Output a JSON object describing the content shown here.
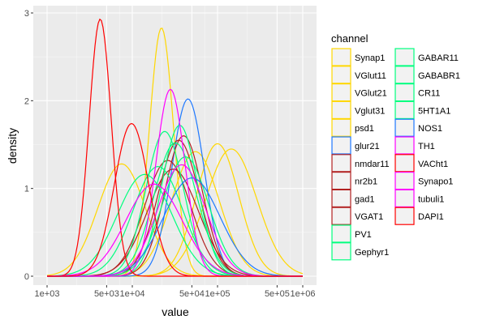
{
  "chart_data": {
    "type": "line",
    "title": "",
    "xlabel": "value",
    "ylabel": "density",
    "x_scale": "log10",
    "xlim": [
      1000,
      1000000
    ],
    "ylim": [
      0,
      3.0
    ],
    "grid": true,
    "legend_position": "right",
    "legend_title": "channel",
    "x_ticks": [
      {
        "value": 1000,
        "label": "1e+03"
      },
      {
        "value": 5000,
        "label": "5e+03"
      },
      {
        "value": 10000,
        "label": "1e+04"
      },
      {
        "value": 50000,
        "label": "5e+04"
      },
      {
        "value": 100000,
        "label": "1e+05"
      },
      {
        "value": 500000,
        "label": "5e+05"
      },
      {
        "value": 1000000,
        "label": "1e+06"
      }
    ],
    "y_ticks": [
      {
        "value": 0,
        "label": "0"
      },
      {
        "value": 1,
        "label": "1"
      },
      {
        "value": 2,
        "label": "2"
      },
      {
        "value": 3,
        "label": "3"
      }
    ],
    "series_shape": "approximate log-normal density curves; mode = x value of peak, peak = density at mode, sd = spread in log10 units",
    "series": [
      {
        "name": "Synap1",
        "color": "#FFD700",
        "mode": 22000,
        "peak": 2.83,
        "sd": 0.14
      },
      {
        "name": "VGlut11",
        "color": "#FFD700",
        "mode": 55000,
        "peak": 1.42,
        "sd": 0.28
      },
      {
        "name": "VGlut21",
        "color": "#FFD700",
        "mode": 145000,
        "peak": 1.45,
        "sd": 0.3
      },
      {
        "name": "Vglut31",
        "color": "#FFD700",
        "mode": 7500,
        "peak": 1.28,
        "sd": 0.28
      },
      {
        "name": "psd1",
        "color": "#FFD700",
        "mode": 100000,
        "peak": 1.51,
        "sd": 0.25
      },
      {
        "name": "glur21",
        "color": "#1E78FF",
        "mode": 45000,
        "peak": 2.02,
        "sd": 0.19
      },
      {
        "name": "nmdar11",
        "color": "#B22222",
        "mode": 30000,
        "peak": 1.22,
        "sd": 0.3
      },
      {
        "name": "nr2b1",
        "color": "#B22222",
        "mode": 35000,
        "peak": 1.55,
        "sd": 0.24
      },
      {
        "name": "gad1",
        "color": "#B22222",
        "mode": 26000,
        "peak": 1.32,
        "sd": 0.27
      },
      {
        "name": "VGAT1",
        "color": "#B22222",
        "mode": 40000,
        "peak": 1.6,
        "sd": 0.22
      },
      {
        "name": "PV1",
        "color": "#00FF7F",
        "mode": 32000,
        "peak": 1.52,
        "sd": 0.25
      },
      {
        "name": "Gephyr1",
        "color": "#00FF7F",
        "mode": 24000,
        "peak": 1.65,
        "sd": 0.22
      },
      {
        "name": "GABAR11",
        "color": "#00FF7F",
        "mode": 36000,
        "peak": 1.72,
        "sd": 0.21
      },
      {
        "name": "GABABR1",
        "color": "#00FF7F",
        "mode": 14000,
        "peak": 1.16,
        "sd": 0.32
      },
      {
        "name": "CR11",
        "color": "#00FF7F",
        "mode": 20000,
        "peak": 1.25,
        "sd": 0.29
      },
      {
        "name": "5HT1A1",
        "color": "#00FF7F",
        "mode": 42000,
        "peak": 1.36,
        "sd": 0.27
      },
      {
        "name": "NOS1",
        "color": "#1E78FF",
        "mode": 50000,
        "peak": 1.12,
        "sd": 0.33
      },
      {
        "name": "TH1",
        "color": "#FF00FF",
        "mode": 28000,
        "peak": 2.13,
        "sd": 0.17
      },
      {
        "name": "VACht1",
        "color": "#FF0000",
        "mode": 4200,
        "peak": 2.93,
        "sd": 0.13
      },
      {
        "name": "Synapo1",
        "color": "#FF00FF",
        "mode": 38000,
        "peak": 1.27,
        "sd": 0.28
      },
      {
        "name": "tubuli1",
        "color": "#FF00FF",
        "mode": 18000,
        "peak": 1.05,
        "sd": 0.33
      },
      {
        "name": "DAPI1",
        "color": "#FF0000",
        "mode": 9800,
        "peak": 1.74,
        "sd": 0.2
      }
    ]
  }
}
